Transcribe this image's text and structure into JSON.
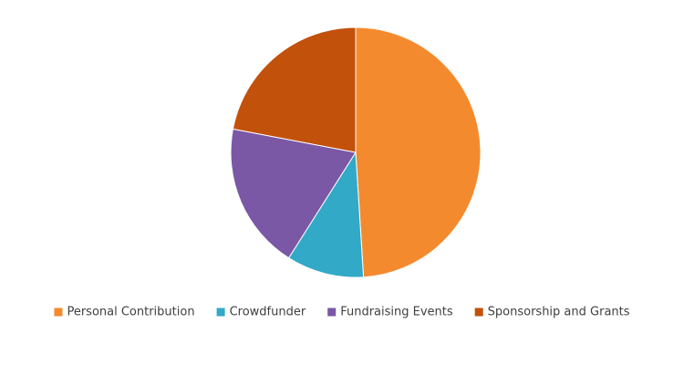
{
  "chart_data": {
    "type": "pie",
    "categories": [
      "Personal Contribution",
      "Crowdfunder",
      "Fundraising Events",
      "Sponsorship and Grants"
    ],
    "values": [
      49,
      10,
      19,
      22
    ],
    "colors": [
      "#f48a2e",
      "#31a9c7",
      "#7a58a5",
      "#c2510c"
    ],
    "legend": "bottom"
  }
}
